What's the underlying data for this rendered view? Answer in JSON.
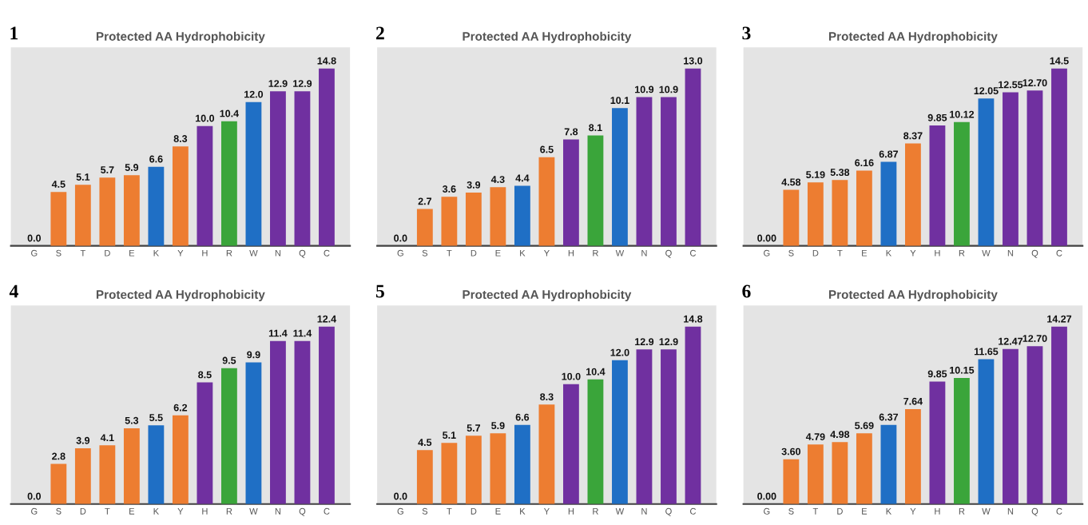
{
  "chart_data": [
    {
      "type": "bar",
      "title": "Protected AA Hydrophobicity",
      "annotations": [
        "1"
      ],
      "categories": [
        "G",
        "S",
        "T",
        "D",
        "E",
        "K",
        "Y",
        "H",
        "R",
        "W",
        "N",
        "Q",
        "C"
      ],
      "values": [
        0.0,
        4.5,
        5.1,
        5.7,
        5.9,
        6.6,
        8.3,
        10.0,
        10.4,
        12.0,
        12.9,
        12.9,
        14.8
      ],
      "value_labels": [
        "0.0",
        "4.5",
        "5.1",
        "5.7",
        "5.9",
        "6.6",
        "8.3",
        "10.0",
        "10.4",
        "12.0",
        "12.9",
        "12.9",
        "14.8"
      ],
      "colors": [
        "#ed7d31",
        "#ed7d31",
        "#ed7d31",
        "#ed7d31",
        "#ed7d31",
        "#1f6fc5",
        "#ed7d31",
        "#7030a0",
        "#3aa53a",
        "#1f6fc5",
        "#7030a0",
        "#7030a0",
        "#7030a0"
      ]
    },
    {
      "type": "bar",
      "title": "Protected AA Hydrophobicity",
      "annotations": [
        "2"
      ],
      "categories": [
        "G",
        "S",
        "T",
        "D",
        "E",
        "K",
        "Y",
        "H",
        "R",
        "W",
        "N",
        "Q",
        "C"
      ],
      "values": [
        0.0,
        2.7,
        3.6,
        3.9,
        4.3,
        4.4,
        6.5,
        7.8,
        8.1,
        10.1,
        10.9,
        10.9,
        13.0
      ],
      "value_labels": [
        "0.0",
        "2.7",
        "3.6",
        "3.9",
        "4.3",
        "4.4",
        "6.5",
        "7.8",
        "8.1",
        "10.1",
        "10.9",
        "10.9",
        "13.0"
      ],
      "colors": [
        "#ed7d31",
        "#ed7d31",
        "#ed7d31",
        "#ed7d31",
        "#ed7d31",
        "#1f6fc5",
        "#ed7d31",
        "#7030a0",
        "#3aa53a",
        "#1f6fc5",
        "#7030a0",
        "#7030a0",
        "#7030a0"
      ]
    },
    {
      "type": "bar",
      "title": "Protected AA Hydrophobicity",
      "annotations": [
        "3"
      ],
      "categories": [
        "G",
        "S",
        "D",
        "T",
        "E",
        "K",
        "Y",
        "H",
        "R",
        "W",
        "N",
        "Q",
        "C"
      ],
      "values": [
        0.0,
        4.58,
        5.19,
        5.38,
        6.16,
        6.87,
        8.37,
        9.85,
        10.12,
        12.05,
        12.55,
        12.7,
        14.5
      ],
      "value_labels": [
        "0.00",
        "4.58",
        "5.19",
        "5.38",
        "6.16",
        "6.87",
        "8.37",
        "9.85",
        "10.12",
        "12.05",
        "12.55",
        "12.70",
        "14.5"
      ],
      "colors": [
        "#ed7d31",
        "#ed7d31",
        "#ed7d31",
        "#ed7d31",
        "#ed7d31",
        "#1f6fc5",
        "#ed7d31",
        "#7030a0",
        "#3aa53a",
        "#1f6fc5",
        "#7030a0",
        "#7030a0",
        "#7030a0"
      ]
    },
    {
      "type": "bar",
      "title": "Protected AA Hydrophobicity",
      "annotations": [
        "4"
      ],
      "categories": [
        "G",
        "S",
        "D",
        "T",
        "E",
        "K",
        "Y",
        "H",
        "R",
        "W",
        "N",
        "Q",
        "C"
      ],
      "values": [
        0.0,
        2.8,
        3.9,
        4.1,
        5.3,
        5.5,
        6.2,
        8.5,
        9.5,
        9.9,
        11.4,
        11.4,
        12.4
      ],
      "value_labels": [
        "0.0",
        "2.8",
        "3.9",
        "4.1",
        "5.3",
        "5.5",
        "6.2",
        "8.5",
        "9.5",
        "9.9",
        "11.4",
        "11.4",
        "12.4"
      ],
      "colors": [
        "#ed7d31",
        "#ed7d31",
        "#ed7d31",
        "#ed7d31",
        "#ed7d31",
        "#1f6fc5",
        "#ed7d31",
        "#7030a0",
        "#3aa53a",
        "#1f6fc5",
        "#7030a0",
        "#7030a0",
        "#7030a0"
      ]
    },
    {
      "type": "bar",
      "title": "Protected AA Hydrophobicity",
      "annotations": [
        "5"
      ],
      "categories": [
        "G",
        "S",
        "T",
        "D",
        "E",
        "K",
        "Y",
        "H",
        "R",
        "W",
        "N",
        "Q",
        "C"
      ],
      "values": [
        0.0,
        4.5,
        5.1,
        5.7,
        5.9,
        6.6,
        8.3,
        10.0,
        10.4,
        12.0,
        12.9,
        12.9,
        14.8
      ],
      "value_labels": [
        "0.0",
        "4.5",
        "5.1",
        "5.7",
        "5.9",
        "6.6",
        "8.3",
        "10.0",
        "10.4",
        "12.0",
        "12.9",
        "12.9",
        "14.8"
      ],
      "colors": [
        "#ed7d31",
        "#ed7d31",
        "#ed7d31",
        "#ed7d31",
        "#ed7d31",
        "#1f6fc5",
        "#ed7d31",
        "#7030a0",
        "#3aa53a",
        "#1f6fc5",
        "#7030a0",
        "#7030a0",
        "#7030a0"
      ]
    },
    {
      "type": "bar",
      "title": "Protected AA Hydrophobicity",
      "annotations": [
        "6"
      ],
      "categories": [
        "G",
        "S",
        "T",
        "D",
        "E",
        "K",
        "Y",
        "H",
        "R",
        "W",
        "N",
        "Q",
        "C"
      ],
      "values": [
        0.0,
        3.6,
        4.79,
        4.98,
        5.69,
        6.37,
        7.64,
        9.85,
        10.15,
        11.65,
        12.47,
        12.7,
        14.27
      ],
      "value_labels": [
        "0.00",
        "3.60",
        "4.79",
        "4.98",
        "5.69",
        "6.37",
        "7.64",
        "9.85",
        "10.15",
        "11.65",
        "12.47",
        "12.70",
        "14.27"
      ],
      "colors": [
        "#ed7d31",
        "#ed7d31",
        "#ed7d31",
        "#ed7d31",
        "#ed7d31",
        "#1f6fc5",
        "#ed7d31",
        "#7030a0",
        "#3aa53a",
        "#1f6fc5",
        "#7030a0",
        "#7030a0",
        "#7030a0"
      ]
    }
  ]
}
